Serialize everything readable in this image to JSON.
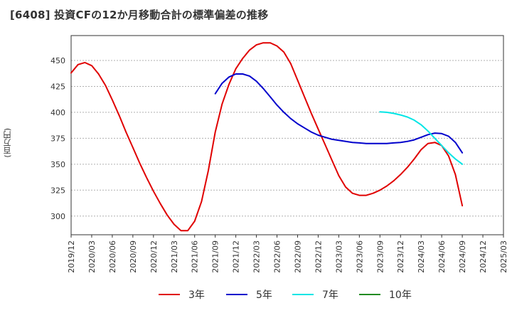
{
  "title": "[6408]  投資CFの12か月移動合計の標準偏差の推移",
  "y_unit": "(百万円)",
  "chart_data": {
    "type": "line",
    "title": "[6408]  投資CFの12か月移動合計の標準偏差の推移",
    "ylabel": "(百万円)",
    "xlabel": "",
    "ylim": [
      282,
      474
    ],
    "yticks": [
      300,
      325,
      350,
      375,
      400,
      425,
      450
    ],
    "xlim": [
      "2019/12",
      "2025/03"
    ],
    "x_ticks": [
      "2019/12",
      "2020/03",
      "2020/06",
      "2020/09",
      "2020/12",
      "2021/03",
      "2021/06",
      "2021/09",
      "2021/12",
      "2022/03",
      "2022/06",
      "2022/09",
      "2022/12",
      "2023/03",
      "2023/06",
      "2023/09",
      "2023/12",
      "2024/03",
      "2024/06",
      "2024/09",
      "2024/12",
      "2025/03"
    ],
    "grid": true,
    "legend_position": "bottom",
    "series": [
      {
        "name": "3年",
        "color": "#e00000",
        "x": [
          "2019/12",
          "2020/01",
          "2020/02",
          "2020/03",
          "2020/04",
          "2020/05",
          "2020/06",
          "2020/07",
          "2020/08",
          "2020/09",
          "2020/10",
          "2020/11",
          "2020/12",
          "2021/01",
          "2021/02",
          "2021/03",
          "2021/04",
          "2021/05",
          "2021/06",
          "2021/07",
          "2021/08",
          "2021/09",
          "2021/10",
          "2021/11",
          "2021/12",
          "2022/01",
          "2022/02",
          "2022/03",
          "2022/04",
          "2022/05",
          "2022/06",
          "2022/07",
          "2022/08",
          "2022/09",
          "2022/10",
          "2022/11",
          "2022/12",
          "2023/01",
          "2023/02",
          "2023/03",
          "2023/04",
          "2023/05",
          "2023/06",
          "2023/07",
          "2023/08",
          "2023/09",
          "2023/10",
          "2023/11",
          "2023/12",
          "2024/01",
          "2024/02",
          "2024/03",
          "2024/04",
          "2024/05",
          "2024/06",
          "2024/07",
          "2024/08",
          "2024/09"
        ],
        "values": [
          438,
          446,
          448,
          445,
          437,
          426,
          412,
          397,
          381,
          366,
          351,
          337,
          324,
          312,
          301,
          292,
          286,
          286,
          295,
          314,
          344,
          381,
          408,
          427,
          442,
          452,
          460,
          465,
          467,
          467,
          464,
          458,
          447,
          431,
          415,
          399,
          384,
          369,
          354,
          339,
          328,
          322,
          320,
          320,
          322,
          325,
          329,
          334,
          340,
          347,
          355,
          364,
          370,
          371,
          368,
          358,
          340,
          310
        ]
      },
      {
        "name": "5年",
        "color": "#0000cc",
        "x": [
          "2021/09",
          "2021/10",
          "2021/11",
          "2021/12",
          "2022/01",
          "2022/02",
          "2022/03",
          "2022/04",
          "2022/05",
          "2022/06",
          "2022/07",
          "2022/08",
          "2022/09",
          "2022/10",
          "2022/11",
          "2022/12",
          "2023/01",
          "2023/02",
          "2023/03",
          "2023/04",
          "2023/05",
          "2023/06",
          "2023/07",
          "2023/08",
          "2023/09",
          "2023/10",
          "2023/11",
          "2023/12",
          "2024/01",
          "2024/02",
          "2024/03",
          "2024/04",
          "2024/05",
          "2024/06",
          "2024/07",
          "2024/08",
          "2024/09"
        ],
        "values": [
          418,
          428,
          434,
          437,
          437,
          435,
          430,
          423,
          415,
          407,
          400,
          394,
          389,
          385,
          381,
          378,
          376,
          374,
          373,
          372,
          371,
          370.5,
          370,
          370,
          370,
          370,
          370.5,
          371,
          372,
          373.5,
          376,
          378.5,
          380,
          379.5,
          377,
          371,
          361
        ]
      },
      {
        "name": "7年",
        "color": "#00e5e5",
        "x": [
          "2023/09",
          "2023/10",
          "2023/11",
          "2023/12",
          "2024/01",
          "2024/02",
          "2024/03",
          "2024/04",
          "2024/05",
          "2024/06",
          "2024/07",
          "2024/08",
          "2024/09"
        ],
        "values": [
          400.5,
          400,
          399,
          397.5,
          395.5,
          392.5,
          388,
          382,
          375,
          368,
          361,
          355,
          350
        ]
      },
      {
        "name": "10年",
        "color": "#228b22",
        "x": [],
        "values": []
      }
    ]
  }
}
